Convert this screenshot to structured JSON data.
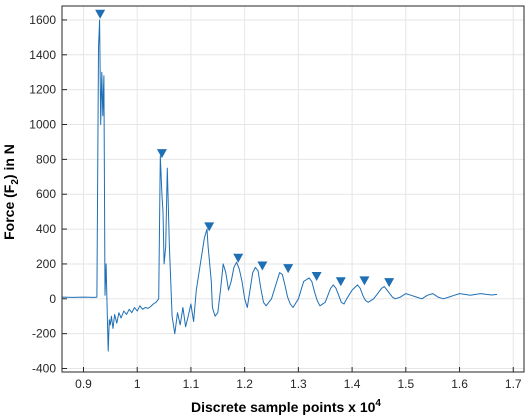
{
  "chart_data": {
    "type": "line",
    "xlabel": "Discrete sample points x 10",
    "xlabel_exponent": "4",
    "ylabel": "Force (F",
    "ylabel_sub": "2",
    "ylabel_tail": ") in N",
    "xlim": [
      0.86,
      1.72
    ],
    "ylim": [
      -420,
      1680
    ],
    "grid": true,
    "x_ticks": [
      0.9,
      1.0,
      1.1,
      1.2,
      1.3,
      1.4,
      1.5,
      1.6,
      1.7
    ],
    "x_tick_labels": [
      "0.9",
      "1",
      "1.1",
      "1.2",
      "1.3",
      "1.4",
      "1.5",
      "1.6",
      "1.7"
    ],
    "y_ticks": [
      -400,
      -200,
      0,
      200,
      400,
      600,
      800,
      1000,
      1200,
      1400,
      1600
    ],
    "y_tick_labels": [
      "-400",
      "-200",
      "0",
      "200",
      "400",
      "600",
      "800",
      "1000",
      "1200",
      "1400",
      "1600"
    ],
    "series": [
      {
        "color": "#1f6fb5",
        "x": [
          0.86,
          0.88,
          0.9,
          0.92,
          0.925,
          0.928,
          0.93,
          0.932,
          0.934,
          0.936,
          0.938,
          0.94,
          0.942,
          0.944,
          0.946,
          0.948,
          0.95,
          0.952,
          0.955,
          0.958,
          0.962,
          0.966,
          0.97,
          0.975,
          0.98,
          0.985,
          0.99,
          0.995,
          1.0,
          1.005,
          1.01,
          1.015,
          1.02,
          1.025,
          1.03,
          1.035,
          1.04,
          1.043,
          1.046,
          1.048,
          1.05,
          1.053,
          1.056,
          1.06,
          1.065,
          1.07,
          1.075,
          1.08,
          1.085,
          1.09,
          1.095,
          1.1,
          1.105,
          1.11,
          1.115,
          1.12,
          1.125,
          1.13,
          1.132,
          1.135,
          1.138,
          1.14,
          1.145,
          1.15,
          1.155,
          1.16,
          1.165,
          1.17,
          1.175,
          1.18,
          1.185,
          1.19,
          1.195,
          1.2,
          1.205,
          1.21,
          1.215,
          1.22,
          1.225,
          1.23,
          1.235,
          1.24,
          1.25,
          1.26,
          1.265,
          1.27,
          1.275,
          1.28,
          1.285,
          1.29,
          1.3,
          1.31,
          1.32,
          1.325,
          1.33,
          1.335,
          1.34,
          1.35,
          1.36,
          1.365,
          1.37,
          1.375,
          1.38,
          1.385,
          1.39,
          1.4,
          1.41,
          1.415,
          1.42,
          1.425,
          1.43,
          1.44,
          1.45,
          1.455,
          1.46,
          1.465,
          1.47,
          1.475,
          1.48,
          1.49,
          1.5,
          1.51,
          1.52,
          1.53,
          1.54,
          1.55,
          1.56,
          1.57,
          1.58,
          1.59,
          1.6,
          1.61,
          1.62,
          1.63,
          1.64,
          1.65,
          1.66,
          1.67
        ],
        "y": [
          10,
          8,
          10,
          8,
          10,
          1440,
          1600,
          1000,
          1300,
          1050,
          1280,
          20,
          200,
          -50,
          -300,
          -120,
          -150,
          -100,
          -170,
          -90,
          -140,
          -80,
          -110,
          -70,
          -90,
          -60,
          -80,
          -50,
          -70,
          -40,
          -60,
          -50,
          -55,
          -45,
          -30,
          -20,
          0,
          820,
          600,
          500,
          200,
          300,
          750,
          300,
          -100,
          -200,
          -80,
          -150,
          -50,
          -160,
          -100,
          -30,
          -130,
          50,
          150,
          250,
          350,
          400,
          300,
          200,
          100,
          -50,
          -100,
          -80,
          50,
          200,
          150,
          50,
          100,
          180,
          210,
          170,
          100,
          0,
          -50,
          50,
          150,
          180,
          160,
          60,
          -20,
          -40,
          0,
          100,
          150,
          140,
          80,
          10,
          -30,
          -50,
          0,
          100,
          120,
          100,
          40,
          -10,
          -40,
          -20,
          60,
          80,
          60,
          20,
          -20,
          -30,
          0,
          50,
          80,
          60,
          20,
          -10,
          -20,
          0,
          40,
          60,
          70,
          50,
          30,
          10,
          0,
          10,
          30,
          20,
          10,
          0,
          20,
          30,
          10,
          0,
          10,
          20,
          30,
          25,
          20,
          25,
          30,
          25,
          22,
          25
        ]
      }
    ],
    "markers": {
      "shape": "downward-triangle",
      "color": "#1f6fb5",
      "x": [
        0.931,
        1.046,
        1.134,
        1.188,
        1.233,
        1.281,
        1.334,
        1.379,
        1.423,
        1.469
      ],
      "y": [
        1630,
        830,
        410,
        230,
        185,
        170,
        125,
        95,
        100,
        90
      ]
    }
  }
}
